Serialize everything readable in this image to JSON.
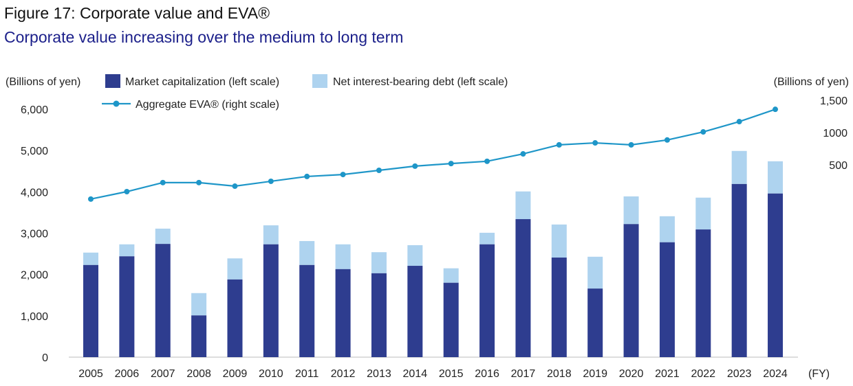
{
  "title": "Figure 17: Corporate value and EVA®",
  "subtitle": "Corporate value increasing over the medium to long term",
  "chart_data": {
    "type": "bar",
    "stacked": true,
    "categories": [
      "2005",
      "2006",
      "2007",
      "2008",
      "2009",
      "2010",
      "2011",
      "2012",
      "2013",
      "2014",
      "2015",
      "2016",
      "2017",
      "2018",
      "2019",
      "2020",
      "2021",
      "2022",
      "2023",
      "2024"
    ],
    "xlabel": "(FY)",
    "ylabel_left": "(Billions of yen)",
    "ylabel_right": "(Billions of yen)",
    "ylim_left": [
      0,
      6000
    ],
    "yticks_left": [
      "0",
      "1,000",
      "2,000",
      "3,000",
      "4,000",
      "5,000",
      "6,000"
    ],
    "yticks_left_values": [
      0,
      1000,
      2000,
      3000,
      4000,
      5000,
      6000
    ],
    "ylim_right": [
      0,
      1500
    ],
    "yticks_right": [
      "500",
      "1000",
      "1,500"
    ],
    "yticks_right_values": [
      500,
      1000,
      1500
    ],
    "grid": false,
    "legend_position": "top",
    "series": [
      {
        "name": "Market capitalization (left scale)",
        "type": "bar",
        "axis": "left",
        "color": "#2e3d8f",
        "values": [
          2230,
          2440,
          2740,
          1010,
          1880,
          2730,
          2230,
          2130,
          2030,
          2210,
          1800,
          2730,
          3340,
          2410,
          1660,
          3220,
          2780,
          3090,
          4190,
          3960
        ]
      },
      {
        "name": "Net interest-bearing debt (left scale)",
        "type": "bar",
        "axis": "left",
        "color": "#aed3ef",
        "values": [
          300,
          290,
          370,
          540,
          510,
          460,
          580,
          600,
          510,
          500,
          350,
          280,
          670,
          800,
          770,
          670,
          630,
          770,
          800,
          780
        ]
      },
      {
        "name": "Aggregate EVA® (right scale)",
        "type": "line",
        "axis": "right",
        "color": "#1e96c8",
        "values": [
          -30,
          85,
          225,
          225,
          170,
          245,
          320,
          350,
          415,
          480,
          520,
          555,
          670,
          810,
          840,
          810,
          885,
          1010,
          1170,
          1360
        ]
      }
    ]
  }
}
